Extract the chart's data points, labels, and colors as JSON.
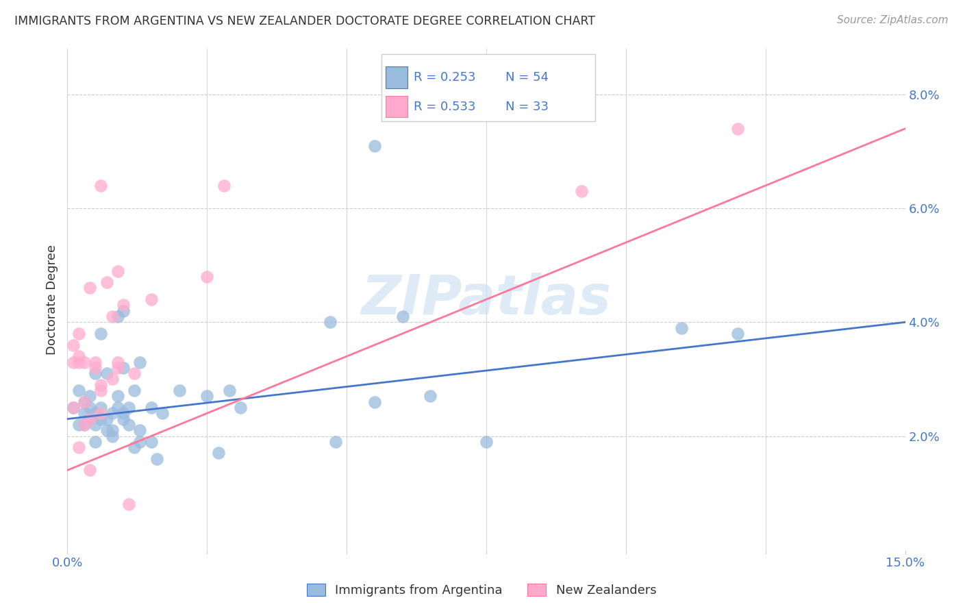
{
  "title": "IMMIGRANTS FROM ARGENTINA VS NEW ZEALANDER DOCTORATE DEGREE CORRELATION CHART",
  "source": "Source: ZipAtlas.com",
  "ylabel": "Doctorate Degree",
  "xlim": [
    0.0,
    0.15
  ],
  "ylim": [
    0.0,
    0.088
  ],
  "yticks_right": [
    0.0,
    0.02,
    0.04,
    0.06,
    0.08
  ],
  "ytick_labels_right": [
    "",
    "2.0%",
    "4.0%",
    "6.0%",
    "8.0%"
  ],
  "blue_color": "#99BBDD",
  "pink_color": "#FFAACC",
  "blue_line_color": "#4477CC",
  "pink_line_color": "#FF7799",
  "legend_text_color": "#4477CC",
  "watermark_color": "#C8DCF0",
  "blue_scatter_x": [
    0.001,
    0.002,
    0.002,
    0.003,
    0.003,
    0.003,
    0.004,
    0.004,
    0.004,
    0.005,
    0.005,
    0.005,
    0.005,
    0.006,
    0.006,
    0.006,
    0.007,
    0.007,
    0.007,
    0.008,
    0.008,
    0.008,
    0.009,
    0.009,
    0.009,
    0.01,
    0.01,
    0.01,
    0.01,
    0.011,
    0.011,
    0.012,
    0.012,
    0.013,
    0.013,
    0.013,
    0.015,
    0.015,
    0.016,
    0.017,
    0.02,
    0.025,
    0.027,
    0.029,
    0.031,
    0.047,
    0.048,
    0.055,
    0.055,
    0.06,
    0.065,
    0.075,
    0.11,
    0.12
  ],
  "blue_scatter_y": [
    0.025,
    0.022,
    0.028,
    0.024,
    0.022,
    0.026,
    0.023,
    0.025,
    0.027,
    0.019,
    0.022,
    0.024,
    0.031,
    0.023,
    0.025,
    0.038,
    0.021,
    0.023,
    0.031,
    0.021,
    0.02,
    0.024,
    0.025,
    0.027,
    0.041,
    0.023,
    0.024,
    0.032,
    0.042,
    0.022,
    0.025,
    0.018,
    0.028,
    0.019,
    0.021,
    0.033,
    0.019,
    0.025,
    0.016,
    0.024,
    0.028,
    0.027,
    0.017,
    0.028,
    0.025,
    0.04,
    0.019,
    0.026,
    0.071,
    0.041,
    0.027,
    0.019,
    0.039,
    0.038
  ],
  "pink_scatter_x": [
    0.001,
    0.001,
    0.001,
    0.002,
    0.002,
    0.002,
    0.002,
    0.003,
    0.003,
    0.003,
    0.004,
    0.004,
    0.004,
    0.005,
    0.005,
    0.006,
    0.006,
    0.006,
    0.006,
    0.007,
    0.008,
    0.008,
    0.009,
    0.009,
    0.009,
    0.01,
    0.011,
    0.012,
    0.015,
    0.025,
    0.028,
    0.092,
    0.12
  ],
  "pink_scatter_y": [
    0.025,
    0.033,
    0.036,
    0.018,
    0.033,
    0.034,
    0.038,
    0.022,
    0.033,
    0.026,
    0.014,
    0.023,
    0.046,
    0.032,
    0.033,
    0.024,
    0.028,
    0.029,
    0.064,
    0.047,
    0.03,
    0.041,
    0.032,
    0.033,
    0.049,
    0.043,
    0.008,
    0.031,
    0.044,
    0.048,
    0.064,
    0.063,
    0.074
  ],
  "blue_line_x": [
    0.0,
    0.15
  ],
  "blue_line_y": [
    0.023,
    0.04
  ],
  "pink_line_x": [
    0.0,
    0.15
  ],
  "pink_line_y": [
    0.014,
    0.074
  ],
  "background_color": "#ffffff",
  "grid_color": "#CCCCCC",
  "title_color": "#333333",
  "axis_tick_color": "#4477CC",
  "source_color": "#999999"
}
